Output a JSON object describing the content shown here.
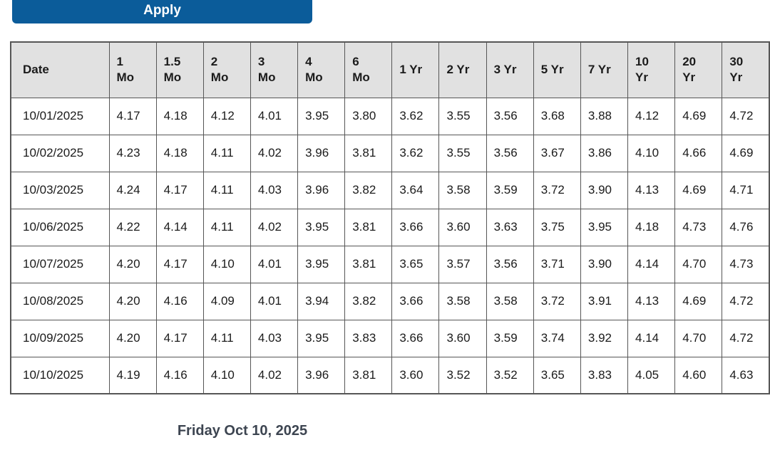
{
  "apply_button": {
    "label": "Apply"
  },
  "colors": {
    "primary": "#0b5c9a",
    "table_border": "#565656",
    "header_background": "#e1e1e1",
    "text": "#1b1b1b",
    "footer_text": "#3d4551"
  },
  "table": {
    "columns": [
      "Date",
      "1\nMo",
      "1.5\nMo",
      "2\nMo",
      "3\nMo",
      "4\nMo",
      "6\nMo",
      "1 Yr",
      "2 Yr",
      "3 Yr",
      "5 Yr",
      "7 Yr",
      "10\nYr",
      "20\nYr",
      "30\nYr"
    ],
    "rows": [
      {
        "date": "10/01/2025",
        "values": [
          "4.17",
          "4.18",
          "4.12",
          "4.01",
          "3.95",
          "3.80",
          "3.62",
          "3.55",
          "3.56",
          "3.68",
          "3.88",
          "4.12",
          "4.69",
          "4.72"
        ]
      },
      {
        "date": "10/02/2025",
        "values": [
          "4.23",
          "4.18",
          "4.11",
          "4.02",
          "3.96",
          "3.81",
          "3.62",
          "3.55",
          "3.56",
          "3.67",
          "3.86",
          "4.10",
          "4.66",
          "4.69"
        ]
      },
      {
        "date": "10/03/2025",
        "values": [
          "4.24",
          "4.17",
          "4.11",
          "4.03",
          "3.96",
          "3.82",
          "3.64",
          "3.58",
          "3.59",
          "3.72",
          "3.90",
          "4.13",
          "4.69",
          "4.71"
        ]
      },
      {
        "date": "10/06/2025",
        "values": [
          "4.22",
          "4.14",
          "4.11",
          "4.02",
          "3.95",
          "3.81",
          "3.66",
          "3.60",
          "3.63",
          "3.75",
          "3.95",
          "4.18",
          "4.73",
          "4.76"
        ]
      },
      {
        "date": "10/07/2025",
        "values": [
          "4.20",
          "4.17",
          "4.10",
          "4.01",
          "3.95",
          "3.81",
          "3.65",
          "3.57",
          "3.56",
          "3.71",
          "3.90",
          "4.14",
          "4.70",
          "4.73"
        ]
      },
      {
        "date": "10/08/2025",
        "values": [
          "4.20",
          "4.16",
          "4.09",
          "4.01",
          "3.94",
          "3.82",
          "3.66",
          "3.58",
          "3.58",
          "3.72",
          "3.91",
          "4.13",
          "4.69",
          "4.72"
        ]
      },
      {
        "date": "10/09/2025",
        "values": [
          "4.20",
          "4.17",
          "4.11",
          "4.03",
          "3.95",
          "3.83",
          "3.66",
          "3.60",
          "3.59",
          "3.74",
          "3.92",
          "4.14",
          "4.70",
          "4.72"
        ]
      },
      {
        "date": "10/10/2025",
        "values": [
          "4.19",
          "4.16",
          "4.10",
          "4.02",
          "3.96",
          "3.81",
          "3.60",
          "3.52",
          "3.52",
          "3.65",
          "3.83",
          "4.05",
          "4.60",
          "4.63"
        ]
      }
    ]
  },
  "footer": {
    "date_label": "Friday Oct 10, 2025"
  }
}
